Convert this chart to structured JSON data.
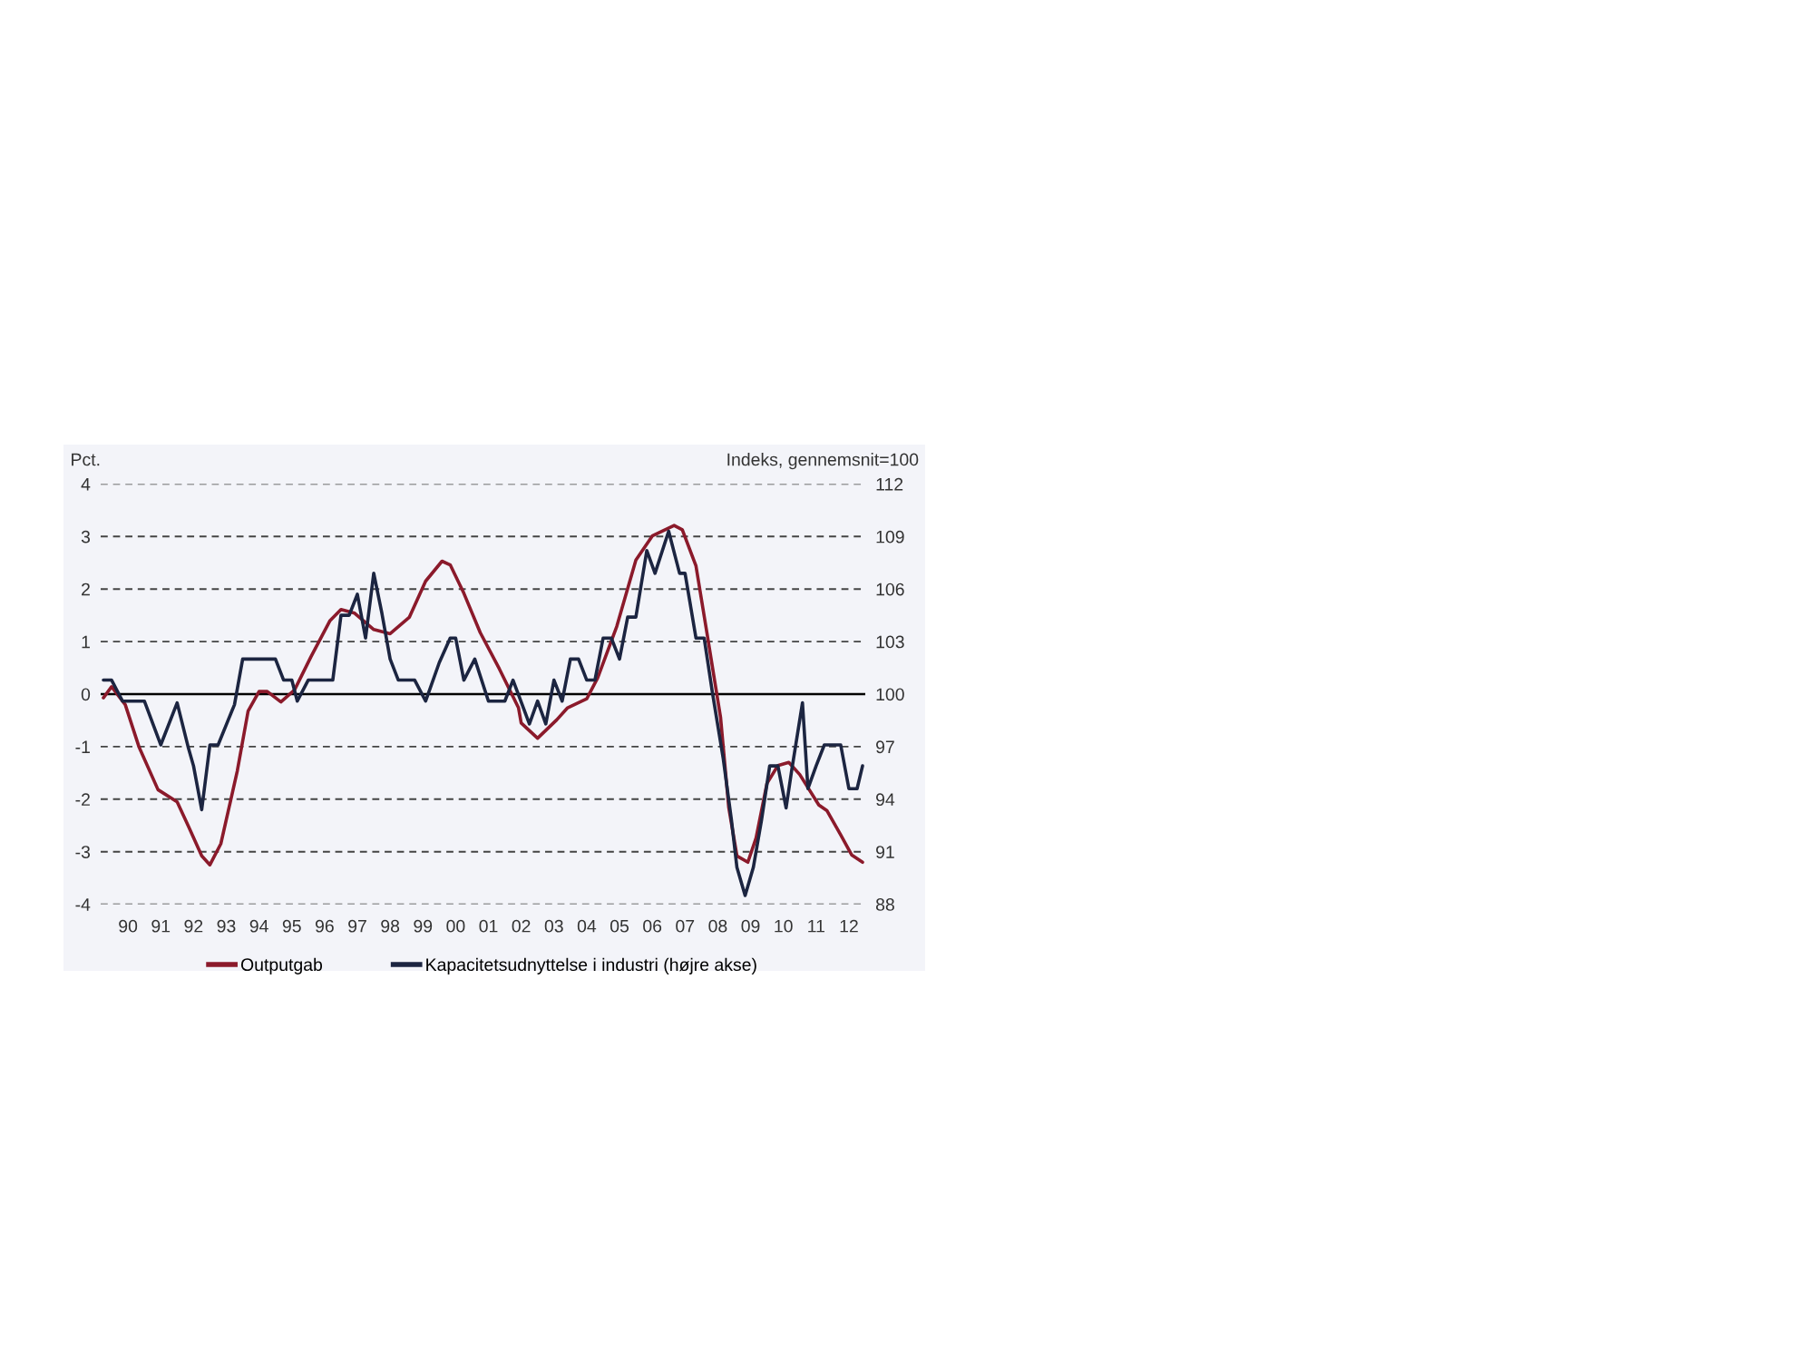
{
  "chart_data": {
    "type": "line",
    "ylabel": "Pct.",
    "y2label": "Indeks, gennemsnit=100",
    "xlim": [
      "1989-09",
      "2013-01"
    ],
    "xticks": [
      {
        "value": "1990-07",
        "label": "90"
      },
      {
        "value": "1991-07",
        "label": "91"
      },
      {
        "value": "1992-07",
        "label": "92"
      },
      {
        "value": "1993-07",
        "label": "93"
      },
      {
        "value": "1994-07",
        "label": "94"
      },
      {
        "value": "1995-07",
        "label": "95"
      },
      {
        "value": "1996-07",
        "label": "96"
      },
      {
        "value": "1997-07",
        "label": "97"
      },
      {
        "value": "1998-07",
        "label": "98"
      },
      {
        "value": "1999-07",
        "label": "99"
      },
      {
        "value": "2000-07",
        "label": "00"
      },
      {
        "value": "2001-07",
        "label": "01"
      },
      {
        "value": "2002-07",
        "label": "02"
      },
      {
        "value": "2003-07",
        "label": "03"
      },
      {
        "value": "2004-07",
        "label": "04"
      },
      {
        "value": "2005-07",
        "label": "05"
      },
      {
        "value": "2006-07",
        "label": "06"
      },
      {
        "value": "2007-07",
        "label": "07"
      },
      {
        "value": "2008-07",
        "label": "08"
      },
      {
        "value": "2009-07",
        "label": "09"
      },
      {
        "value": "2010-07",
        "label": "10"
      },
      {
        "value": "2011-07",
        "label": "11"
      },
      {
        "value": "2012-07",
        "label": "12"
      }
    ],
    "ylim": [
      -4,
      4
    ],
    "yticks": [
      -4,
      -3,
      -2,
      -1,
      0,
      1,
      2,
      3,
      4
    ],
    "y2lim": [
      88,
      112
    ],
    "y2ticks": [
      88,
      91,
      94,
      97,
      100,
      103,
      106,
      109,
      112
    ],
    "grid": "y",
    "legend": "bottom",
    "marker": "none",
    "line_style": "solid",
    "ref_lines": [
      {
        "axis": "y",
        "value": 0,
        "color": "#000000",
        "line_style": "solid"
      }
    ],
    "series": [
      {
        "name": "Outputgab",
        "color": "#8b1a2b",
        "x": [
          "1989-10",
          "1990-01",
          "1990-06",
          "1990-11",
          "1991-06",
          "1992-01",
          "1992-05",
          "1992-10",
          "1993-01",
          "1993-05",
          "1993-11",
          "1994-03",
          "1994-07",
          "1994-10",
          "1995-03",
          "1995-08",
          "1996-02",
          "1996-09",
          "1997-01",
          "1997-06",
          "1998-01",
          "1998-07",
          "1999-02",
          "1999-08",
          "2000-02",
          "2000-05",
          "2000-10",
          "2001-04",
          "2001-11",
          "2002-06",
          "2002-07",
          "2003-01",
          "2003-08",
          "2003-12",
          "2004-07",
          "2004-11",
          "2005-06",
          "2006-01",
          "2006-07",
          "2007-03",
          "2007-06",
          "2007-11",
          "2008-03",
          "2008-08",
          "2008-11",
          "2009-02",
          "2009-06",
          "2009-09",
          "2010-01",
          "2010-05",
          "2010-09",
          "2011-01",
          "2011-08",
          "2011-11",
          "2012-04",
          "2012-08",
          "2012-12"
        ],
        "values": [
          -0.07,
          0.14,
          -0.2,
          -1.0,
          -1.82,
          -2.05,
          -2.5,
          -3.08,
          -3.25,
          -2.85,
          -1.47,
          -0.32,
          0.05,
          0.05,
          -0.15,
          0.08,
          0.71,
          1.4,
          1.61,
          1.54,
          1.23,
          1.15,
          1.46,
          2.15,
          2.53,
          2.46,
          1.92,
          1.17,
          0.48,
          -0.26,
          -0.55,
          -0.84,
          -0.49,
          -0.26,
          -0.09,
          0.31,
          1.29,
          2.55,
          3.01,
          3.21,
          3.13,
          2.44,
          1.17,
          -0.44,
          -2.16,
          -3.08,
          -3.2,
          -2.74,
          -1.7,
          -1.36,
          -1.3,
          -1.53,
          -2.11,
          -2.22,
          -2.68,
          -3.06,
          -3.2
        ]
      },
      {
        "name": "Kapacitetsudnyttelse i industri (højre akse)",
        "color": "#1c2541",
        "axis": "y2",
        "x": [
          "1989-10",
          "1990-01",
          "1990-05",
          "1991-01",
          "1991-07",
          "1992-01",
          "1992-05",
          "1992-07",
          "1992-10",
          "1993-01",
          "1993-04",
          "1993-10",
          "1994-01",
          "1995-01",
          "1995-04",
          "1995-07",
          "1995-09",
          "1996-01",
          "1996-10",
          "1997-01",
          "1997-04",
          "1997-07",
          "1997-10",
          "1998-01",
          "1998-04",
          "1998-07",
          "1998-10",
          "1999-04",
          "1999-08",
          "2000-01",
          "2000-05",
          "2000-07",
          "2000-10",
          "2001-02",
          "2001-07",
          "2002-01",
          "2002-04",
          "2002-10",
          "2003-01",
          "2003-04",
          "2003-07",
          "2003-10",
          "2004-01",
          "2004-04",
          "2004-07",
          "2004-10",
          "2005-01",
          "2005-04",
          "2005-07",
          "2005-10",
          "2006-01",
          "2006-05",
          "2006-08",
          "2007-01",
          "2007-05",
          "2007-07",
          "2007-11",
          "2008-02",
          "2008-05",
          "2008-09",
          "2008-12",
          "2009-02",
          "2009-05",
          "2009-08",
          "2009-11",
          "2010-02",
          "2010-05",
          "2010-08",
          "2010-10",
          "2011-02",
          "2011-04",
          "2011-07",
          "2011-10",
          "2012-04",
          "2012-07",
          "2012-10",
          "2012-12"
        ],
        "values": [
          100.8,
          100.8,
          99.6,
          99.6,
          97.1,
          99.5,
          97.0,
          95.9,
          93.4,
          97.1,
          97.1,
          99.4,
          102.0,
          102.0,
          100.8,
          100.8,
          99.6,
          100.8,
          100.8,
          104.5,
          104.5,
          105.7,
          103.2,
          106.9,
          104.6,
          102.0,
          100.8,
          100.8,
          99.6,
          101.8,
          103.2,
          103.2,
          100.8,
          102.0,
          99.6,
          99.6,
          100.8,
          98.3,
          99.6,
          98.3,
          100.8,
          99.6,
          102.0,
          102.0,
          100.8,
          100.8,
          103.2,
          103.2,
          102.0,
          104.4,
          104.4,
          108.2,
          106.9,
          109.3,
          106.9,
          106.9,
          103.2,
          103.2,
          100.1,
          96.3,
          92.8,
          90.1,
          88.5,
          90.1,
          92.8,
          95.9,
          95.9,
          93.5,
          95.6,
          99.5,
          94.6,
          95.9,
          97.1,
          97.1,
          94.6,
          94.6,
          95.9
        ]
      }
    ]
  }
}
